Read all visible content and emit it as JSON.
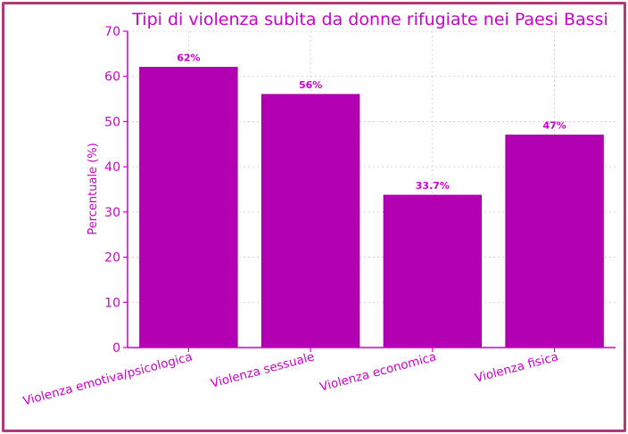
{
  "colors": {
    "frame": "#b03a7a",
    "text": "#cc00cc",
    "bar_fill": "#b300b3",
    "bar_edge": "#990099",
    "axis": "#cc00cc",
    "grid": "#e6b3e6"
  },
  "chart_data": {
    "type": "bar",
    "title": "Tipi di violenza subita da donne rifugiate nei Paesi Bassi",
    "xlabel": "",
    "ylabel": "Percentuale (%)",
    "categories": [
      "Violenza emotiva/psicologica",
      "Violenza sessuale",
      "Violenza economica",
      "Violenza fisica"
    ],
    "values": [
      62,
      56,
      33.7,
      47
    ],
    "data_labels": [
      "62%",
      "56%",
      "33.7%",
      "47%"
    ],
    "ylim": [
      0,
      70
    ],
    "yticks": [
      0,
      10,
      20,
      30,
      40,
      50,
      60,
      70
    ],
    "grid": true
  }
}
